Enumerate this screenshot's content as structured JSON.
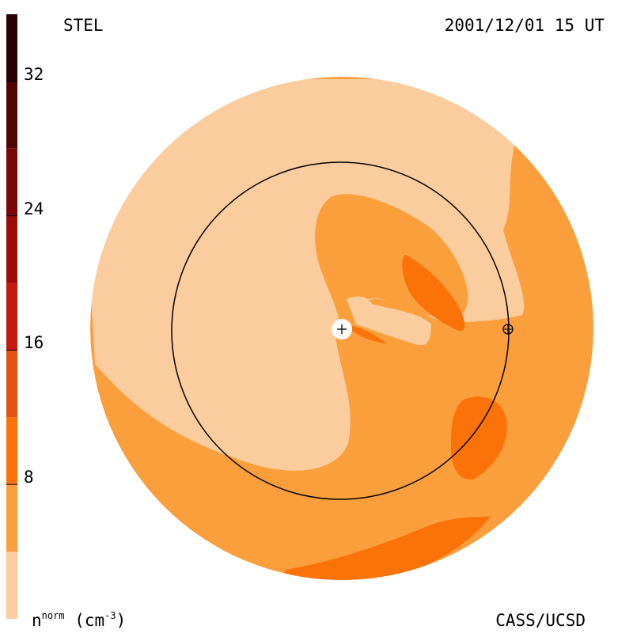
{
  "labels": {
    "instrument": "STEL",
    "timestamp": "2001/12/01 15 UT",
    "credit": "CASS/UCSD",
    "unit_main": "n",
    "unit_sup": "norm",
    "unit_paren_open": " (cm",
    "unit_exp": "-3",
    "unit_paren_close": ")"
  },
  "colors": {
    "level_0_4": "#fbcc9d",
    "level_4_8": "#fb9e3c",
    "level_8_12": "#fb7308",
    "level_12_16": "#e65210",
    "level_16_20": "#c41a10",
    "level_20_24": "#9c0c08",
    "level_24_28": "#7a0806",
    "level_28_32": "#520604",
    "level_32_36": "#2a0402",
    "orbit_line": "#000000"
  },
  "chart_data": {
    "type": "heatmap",
    "title": "",
    "colorbar": {
      "label": "n^norm (cm^-3)",
      "range": [
        0,
        36
      ],
      "levels": [
        0,
        4,
        8,
        12,
        16,
        20,
        24,
        28,
        32,
        36
      ],
      "ticks": [
        "8",
        "16",
        "24",
        "32"
      ],
      "tick_values": [
        8,
        16,
        24,
        32
      ]
    },
    "markers": [
      {
        "name": "Sun",
        "symbol": "+"
      },
      {
        "name": "Earth",
        "symbol": "⊕"
      }
    ]
  }
}
